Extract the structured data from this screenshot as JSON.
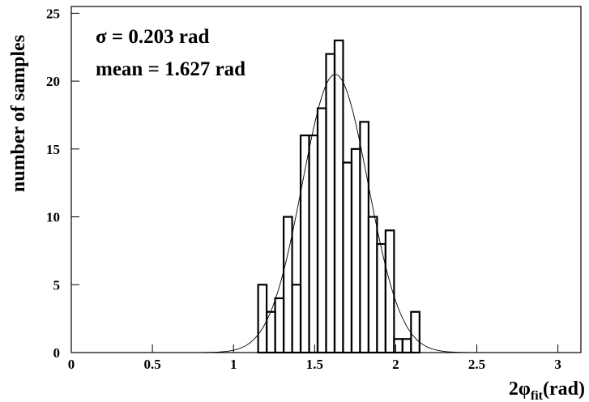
{
  "chart_data": {
    "type": "histogram",
    "bins": [
      1.1519,
      1.2043,
      1.2566,
      1.309,
      1.3614,
      1.4137,
      1.4661,
      1.5184,
      1.5708,
      1.6232,
      1.6755,
      1.7279,
      1.7802,
      1.8326,
      1.885,
      1.9373,
      1.9897,
      2.042,
      2.0944,
      2.1468
    ],
    "values": [
      5,
      3,
      4,
      10,
      5,
      16,
      16,
      18,
      22,
      23,
      14,
      15,
      17,
      10,
      8,
      9,
      1,
      1,
      3
    ],
    "fit": {
      "mean": 1.627,
      "sigma": 0.203,
      "amplitude": 20.5
    },
    "annotations": [
      "σ = 0.203 rad",
      "mean = 1.627 rad"
    ],
    "x_label": {
      "main": "2φ",
      "sub": "fit",
      "unit": "(rad)"
    },
    "y_label": "number of samples",
    "xlim": [
      0,
      3.1416
    ],
    "ylim": [
      0,
      25.5
    ],
    "xticks": [
      0,
      0.5,
      1,
      1.5,
      2,
      2.5,
      3
    ],
    "yticks": [
      0,
      5,
      10,
      15,
      20,
      25
    ],
    "color": "#000000"
  }
}
